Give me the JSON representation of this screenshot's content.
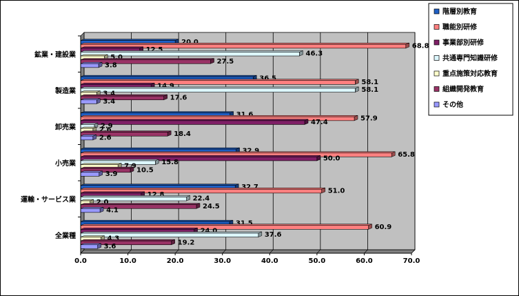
{
  "chart_data": {
    "type": "bar",
    "orientation": "horizontal",
    "title": "",
    "xlabel": "",
    "ylabel": "",
    "xlim": [
      0,
      70
    ],
    "x_ticks": [
      "0.0",
      "10.0",
      "20.0",
      "30.0",
      "40.0",
      "50.0",
      "60.0",
      "70.0"
    ],
    "grid": true,
    "legend_position": "right",
    "categories": [
      "鉱業・建設業",
      "製造業",
      "卸売業",
      "小売業",
      "運輸・サービス業",
      "全業種"
    ],
    "series": [
      {
        "name": "階層別教育",
        "color": "#1f5fc4",
        "values": [
          20.0,
          36.5,
          31.6,
          32.9,
          32.7,
          31.5
        ]
      },
      {
        "name": "職能別研修",
        "color": "#ff8080",
        "values": [
          68.8,
          58.1,
          57.9,
          65.8,
          51.0,
          60.9
        ]
      },
      {
        "name": "事業部別研修",
        "color": "#7f1f66",
        "values": [
          12.5,
          14.9,
          47.4,
          50.0,
          12.8,
          24.0
        ]
      },
      {
        "name": "共通専門知識研修",
        "color": "#ddf8ff",
        "values": [
          46.3,
          58.1,
          2.9,
          15.8,
          22.4,
          37.6
        ]
      },
      {
        "name": "重点施策対応教育",
        "color": "#ffffcc",
        "values": [
          5.0,
          3.4,
          2.6,
          7.9,
          2.0,
          4.3
        ]
      },
      {
        "name": "組織開発教育",
        "color": "#993366",
        "values": [
          27.5,
          17.6,
          18.4,
          10.5,
          24.5,
          19.2
        ]
      },
      {
        "name": "その他",
        "color": "#9999ff",
        "values": [
          3.8,
          3.4,
          2.6,
          3.9,
          4.1,
          3.6
        ]
      }
    ]
  },
  "colors": {
    "plot_background": "#c0c0c0",
    "wall_side": "#808080",
    "gridline": "#000000"
  }
}
